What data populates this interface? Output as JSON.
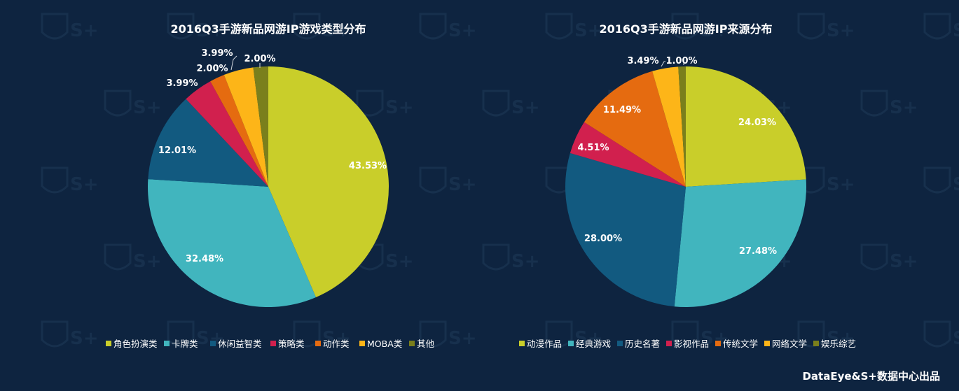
{
  "colors": {
    "background": "#0e2440",
    "palette": [
      "#c9ce2a",
      "#41b5be",
      "#125a80",
      "#d1204e",
      "#e56b10",
      "#fdb518",
      "#7a7f1c"
    ]
  },
  "watermark_text": "S+",
  "footer": {
    "credit": "DataEye&S+数据中心出品"
  },
  "chart_data": [
    {
      "type": "pie",
      "title": "2016Q3手游新品网游IP游戏类型分布",
      "legend_position": "bottom",
      "categories": [
        "角色扮演类",
        "卡牌类",
        "休闲益智类",
        "策略类",
        "动作类",
        "MOBA类",
        "其他"
      ],
      "values": [
        43.53,
        32.48,
        12.01,
        3.99,
        2.0,
        3.99,
        2.0
      ],
      "labels": [
        "43.53%",
        "32.48%",
        "12.01%",
        "3.99%",
        "2.00%",
        "3.99%",
        "2.00%"
      ]
    },
    {
      "type": "pie",
      "title": "2016Q3手游新品网游IP来源分布",
      "legend_position": "bottom",
      "categories": [
        "动漫作品",
        "经典游戏",
        "历史名著",
        "影视作品",
        "传统文学",
        "网络文学",
        "娱乐综艺"
      ],
      "values": [
        24.03,
        27.48,
        28.0,
        4.51,
        11.49,
        3.49,
        1.0
      ],
      "labels": [
        "24.03%",
        "27.48%",
        "28.00%",
        "4.51%",
        "11.49%",
        "3.49%",
        "1.00%"
      ]
    }
  ]
}
